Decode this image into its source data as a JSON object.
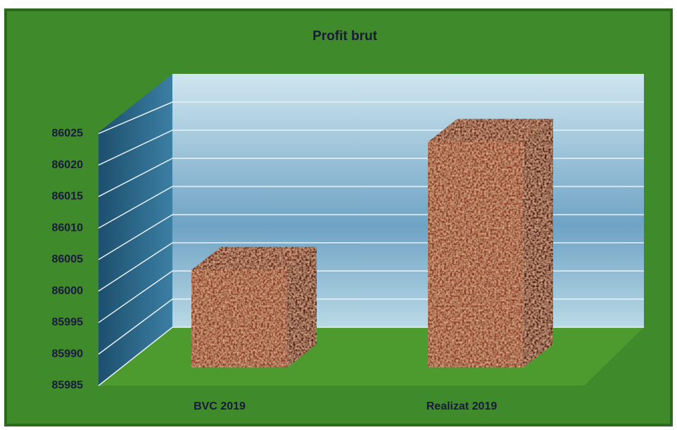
{
  "chart_data": {
    "type": "bar3d",
    "title": "Profit brut",
    "categories": [
      "BVC 2019",
      "Realizat 2019"
    ],
    "values": [
      86001,
      86022
    ],
    "color": "#8b3a24",
    "ylim": [
      85985,
      86030
    ],
    "yticks": [
      85985,
      85990,
      85995,
      86000,
      86005,
      86010,
      86015,
      86020,
      86025
    ],
    "grid": true
  }
}
